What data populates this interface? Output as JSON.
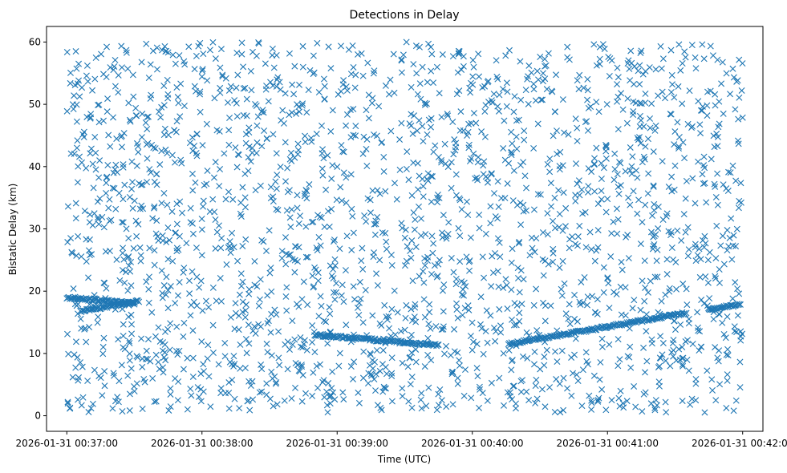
{
  "chart_data": {
    "type": "scatter",
    "title": "Detections in Delay",
    "xlabel": "Time (UTC)",
    "ylabel": "Bistatic Delay (km)",
    "x_start": "2026-01-31 00:36:51",
    "x_end": "2026-01-31 00:42:09",
    "xlim_seconds": [
      -9,
      309
    ],
    "ylim": [
      -2.5,
      62.5
    ],
    "x_tick_labels": [
      "2026-01-31 00:37:00",
      "2026-01-31 00:38:00",
      "2026-01-31 00:39:00",
      "2026-01-31 00:40:00",
      "2026-01-31 00:41:00",
      "2026-01-31 00:42:00"
    ],
    "y_ticks": [
      0,
      10,
      20,
      30,
      40,
      50,
      60
    ],
    "marker": "x",
    "color": "#1f77b4",
    "grid": false,
    "noise_points": {
      "count": 2200,
      "time_range": [
        "2026-01-31 00:37:00",
        "2026-01-31 00:42:00"
      ],
      "delay_range_km": [
        0.5,
        60
      ]
    },
    "tracks": [
      {
        "t_start": "2026-01-31 00:37:00",
        "t_end": "2026-01-31 00:37:30",
        "delay_start": 19.0,
        "delay_end": 18.0
      },
      {
        "t_start": "2026-01-31 00:37:06",
        "t_end": "2026-01-31 00:37:32",
        "delay_start": 16.8,
        "delay_end": 18.4
      },
      {
        "t_start": "2026-01-31 00:38:50",
        "t_end": "2026-01-31 00:39:45",
        "delay_start": 13.0,
        "delay_end": 11.3
      },
      {
        "t_start": "2026-01-31 00:40:16",
        "t_end": "2026-01-31 00:41:35",
        "delay_start": 11.5,
        "delay_end": 16.5
      },
      {
        "t_start": "2026-01-31 00:41:45",
        "t_end": "2026-01-31 00:41:59",
        "delay_start": 17.0,
        "delay_end": 17.9
      }
    ]
  }
}
